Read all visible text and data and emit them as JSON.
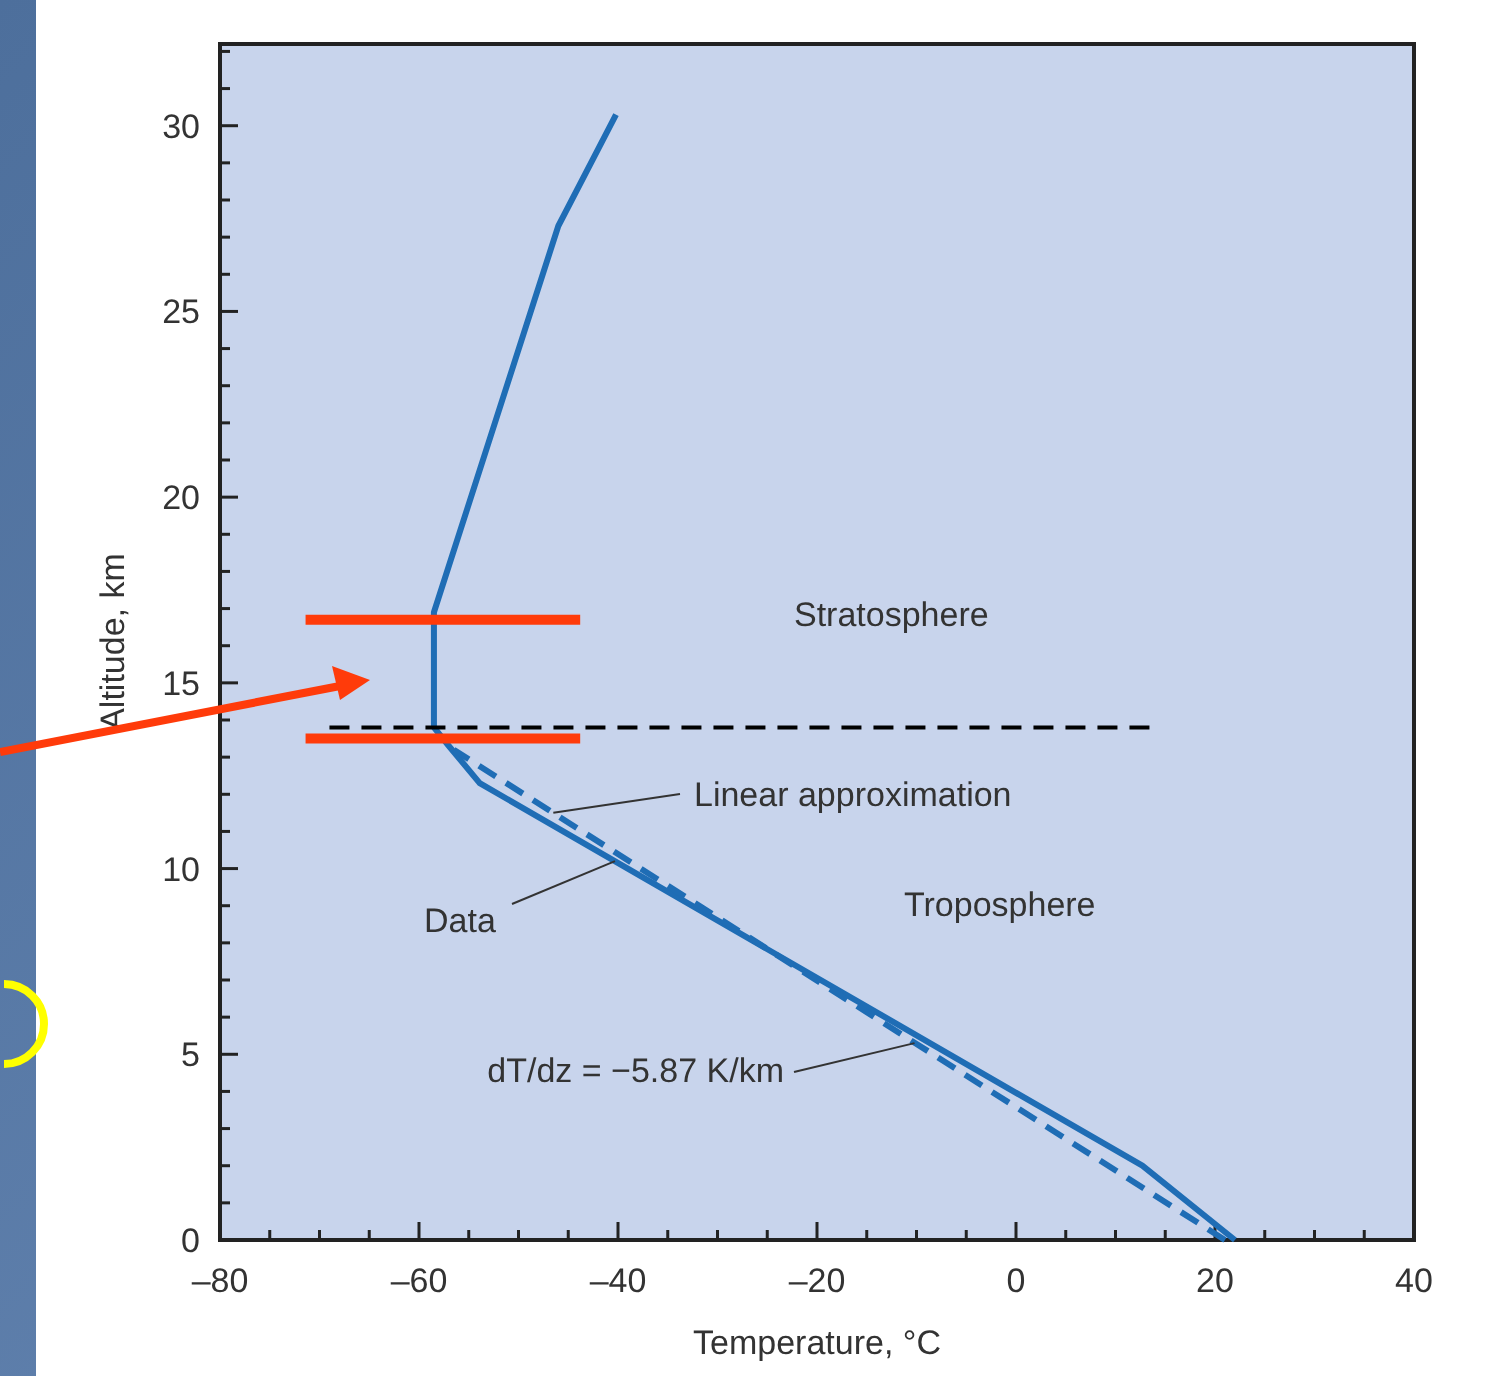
{
  "chart_data": {
    "type": "line",
    "xlabel": "Temperature, °C",
    "ylabel": "Altitude, km",
    "xlim": [
      -80,
      40
    ],
    "ylim": [
      0,
      32.2
    ],
    "xticks": [
      {
        "value": -80,
        "label": "–80"
      },
      {
        "value": -75,
        "label": null
      },
      {
        "value": -70,
        "label": null
      },
      {
        "value": -65,
        "label": null
      },
      {
        "value": -60,
        "label": "–60"
      },
      {
        "value": -55,
        "label": null
      },
      {
        "value": -50,
        "label": null
      },
      {
        "value": -45,
        "label": null
      },
      {
        "value": -40,
        "label": "–40"
      },
      {
        "value": -35,
        "label": null
      },
      {
        "value": -30,
        "label": null
      },
      {
        "value": -25,
        "label": null
      },
      {
        "value": -20,
        "label": "–20"
      },
      {
        "value": -15,
        "label": null
      },
      {
        "value": -10,
        "label": null
      },
      {
        "value": -5,
        "label": null
      },
      0,
      {
        "value": 5,
        "label": null
      },
      {
        "value": 10,
        "label": null
      },
      {
        "value": 15,
        "label": null
      },
      20,
      {
        "value": 25,
        "label": null
      },
      {
        "value": 30,
        "label": null
      },
      {
        "value": 35,
        "label": null
      },
      40
    ],
    "yticks": [
      0,
      {
        "value": 1,
        "label": null
      },
      {
        "value": 2,
        "label": null
      },
      {
        "value": 3,
        "label": null
      },
      {
        "value": 4,
        "label": null
      },
      5,
      {
        "value": 6,
        "label": null
      },
      {
        "value": 7,
        "label": null
      },
      {
        "value": 8,
        "label": null
      },
      {
        "value": 9,
        "label": null
      },
      10,
      {
        "value": 11,
        "label": null
      },
      {
        "value": 12,
        "label": null
      },
      {
        "value": 13,
        "label": null
      },
      {
        "value": 14,
        "label": null
      },
      15,
      {
        "value": 16,
        "label": null
      },
      {
        "value": 17,
        "label": null
      },
      {
        "value": 18,
        "label": null
      },
      {
        "value": 19,
        "label": null
      },
      20,
      {
        "value": 21,
        "label": null
      },
      {
        "value": 22,
        "label": null
      },
      {
        "value": 23,
        "label": null
      },
      {
        "value": 24,
        "label": null
      },
      25,
      {
        "value": 26,
        "label": null
      },
      {
        "value": 27,
        "label": null
      },
      {
        "value": 28,
        "label": null
      },
      {
        "value": 29,
        "label": null
      },
      30,
      {
        "value": 31,
        "label": null
      },
      {
        "value": 32,
        "label": null
      }
    ],
    "grid": false,
    "marker": "none",
    "series": [
      {
        "color": "#1f6db5",
        "line_style": "solid",
        "x": [
          22,
          12.7,
          -53.9,
          -57,
          -58.5,
          -58.5,
          -46,
          -40.2
        ],
        "values": [
          0,
          2,
          12.3,
          13.3,
          13.8,
          16.9,
          27.3,
          30.3
        ]
      },
      {
        "color": "#1f6db5",
        "line_style": "dashed",
        "x": [
          21,
          -56.5
        ],
        "values": [
          0,
          13.2
        ]
      },
      {
        "color": "#000000",
        "line_style": "dashed",
        "x": [
          -69,
          14
        ],
        "values": [
          13.8,
          13.8
        ]
      },
      {
        "color": "#ff3b0a",
        "line_style": "solid",
        "x": [
          -71.4,
          -43.8
        ],
        "values": [
          16.7,
          16.7
        ]
      },
      {
        "color": "#ff3b0a",
        "line_style": "solid",
        "x": [
          -71.4,
          -43.8
        ],
        "values": [
          13.5,
          13.5
        ]
      }
    ],
    "annotations": [
      "Stratosphere",
      "Troposphere",
      {
        "text": "Linear approximation",
        "x": -46.5,
        "y": 11.5
      },
      {
        "text": "Data",
        "x": -40.3,
        "y": 10.2
      },
      {
        "text": "dT/dz = −5.87 K/km",
        "x": -10.2,
        "y": 5.3
      }
    ]
  }
}
